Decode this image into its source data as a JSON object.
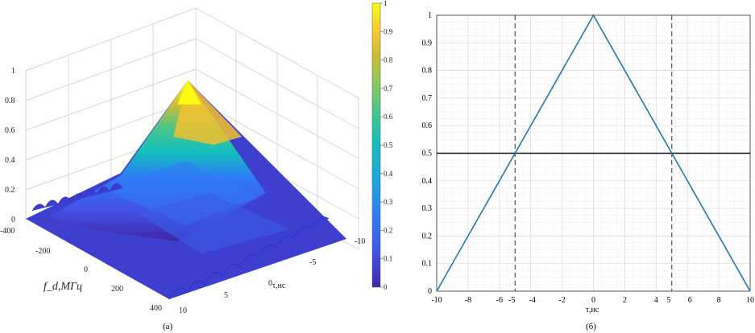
{
  "captions": {
    "left": "(а)",
    "right": "(б)"
  },
  "colors": {
    "line": "#1f78b4",
    "threshold": "#111111",
    "dashed": "#333333",
    "grid": "#d8d8d8",
    "minorGrid": "#eeeeee",
    "axis": "#333333"
  },
  "chart_data": [
    {
      "type": "surface",
      "zlabel": "",
      "xlabel": "f_d,МГц",
      "ylabel": "τ,нс",
      "x_ticks": [
        "-400",
        "-200",
        "0",
        "200",
        "400"
      ],
      "y_ticks": [
        "-10",
        "-5",
        "0",
        "5",
        "10"
      ],
      "z_ticks": [
        "0",
        "0.2",
        "0.4",
        "0.6",
        "0.8",
        "1"
      ],
      "xlim": [
        -400,
        400
      ],
      "ylim": [
        -10,
        10
      ],
      "zlim": [
        0,
        1
      ],
      "colormap": "parula",
      "colorbar": {
        "ticks": [
          "0",
          "0.1",
          "0.2",
          "0.3",
          "0.4",
          "0.5",
          "0.6",
          "0.7",
          "0.8",
          "0.9",
          "1"
        ],
        "stops": [
          "#3e26a8",
          "#4352e8",
          "#2f7cf6",
          "#1aa8df",
          "#12bebd",
          "#46c68d",
          "#8ec85a",
          "#d2bb32",
          "#f9c830",
          "#f9fb15"
        ]
      },
      "peak": {
        "x": 0,
        "y": 0,
        "z": 1
      }
    },
    {
      "type": "line",
      "xlabel": "τ,нс",
      "ylabel": "",
      "xlim": [
        -10,
        10
      ],
      "ylim": [
        0,
        1
      ],
      "x_ticks": [
        "-10",
        "-8",
        "-6",
        "-5",
        "-4",
        "-2",
        "0",
        "2",
        "4",
        "5",
        "6",
        "8",
        "10"
      ],
      "y_ticks": [
        "0",
        "0.1",
        "0.2",
        "0.3",
        "0.4",
        "0.5",
        "0.6",
        "0.7",
        "0.8",
        "0.9",
        "1"
      ],
      "grid": true,
      "series": [
        {
          "x": [
            -10,
            0,
            10
          ],
          "y": [
            0,
            1,
            0
          ]
        }
      ],
      "threshold": 0.5,
      "vlines": [
        -5,
        5
      ]
    }
  ]
}
